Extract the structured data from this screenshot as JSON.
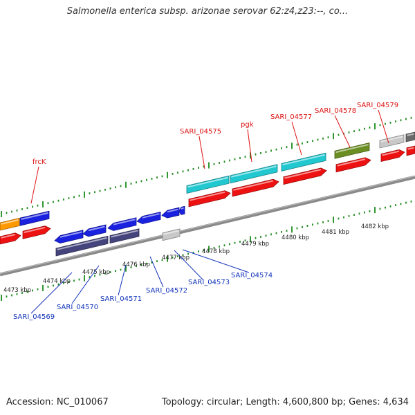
{
  "title": "Salmonella enterica subsp. arizonae serovar 62:z4,z23:--, co...",
  "footer": {
    "accession": "Accession: NC_010067",
    "summary": "Topology: circular; Length: 4,600,800 bp; Genes: 4,634"
  },
  "scale_labels": [
    "4473 kbp",
    "4474 kbp",
    "4475 kbp",
    "4476 kbp",
    "4477 kbp",
    "4478 kbp",
    "4479 kbp",
    "4480 kbp",
    "4481 kbp",
    "4482 kbp"
  ],
  "forward_labels": [
    "frcK",
    "SARI_04575",
    "pgk",
    "SARI_04577",
    "SARI_04578",
    "SARI_04579"
  ],
  "reverse_labels": [
    "SARI_04569",
    "SARI_04570",
    "SARI_04571",
    "SARI_04572",
    "SARI_04573",
    "SARI_04574"
  ],
  "colors": {
    "forward_label": "#dd1111",
    "reverse_label": "#1133bb",
    "backbone": "#8a8a8a",
    "tick": "#1a8a1a",
    "red": "#ee1111",
    "cyan": "#22c8d0",
    "blue": "#1a22e0",
    "navy": "#45447c",
    "olive": "#6b8e23",
    "orange": "#ff9900",
    "gray": "#c8c8c8",
    "darkgray": "#6a6a6a"
  }
}
